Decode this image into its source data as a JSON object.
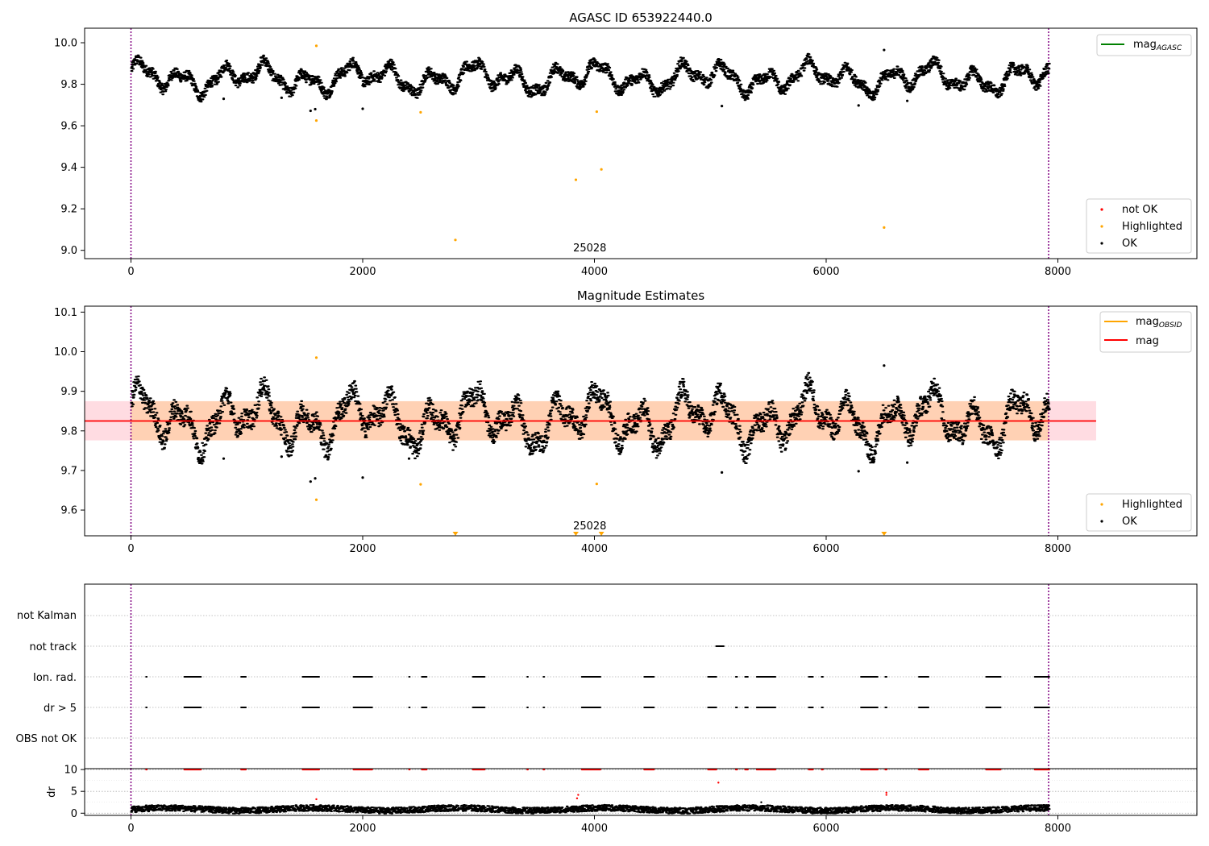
{
  "chart_data": [
    {
      "type": "scatter",
      "title": "AGASC ID 653922440.0",
      "xlim": [
        -400,
        9200
      ],
      "ylim": [
        8.96,
        10.07
      ],
      "x_ticks": [
        0,
        2000,
        4000,
        6000,
        8000
      ],
      "y_ticks": [
        9.0,
        9.2,
        9.4,
        9.6,
        9.8,
        10.0
      ],
      "y_tick_labels": [
        "9.0",
        "9.2",
        "9.4",
        "9.6",
        "9.8",
        "10.0"
      ],
      "obsid_label": {
        "text": "25028",
        "x": 3960
      },
      "obs_bounds": [
        0,
        7920
      ],
      "series": [
        {
          "name": "not OK",
          "color": "#ff0000",
          "points": []
        },
        {
          "name": "Highlighted",
          "color": "#ffa500",
          "points": [
            [
              1600,
              9.985
            ],
            [
              1600,
              9.625
            ],
            [
              2500,
              9.665
            ],
            [
              2800,
              9.05
            ],
            [
              3840,
              9.34
            ],
            [
              4020,
              9.668
            ],
            [
              4060,
              9.39
            ],
            [
              6500,
              9.11
            ]
          ]
        },
        {
          "name": "OK",
          "color": "#000000",
          "note": "dense time series around 9.75-9.95 with outliers",
          "outliers": [
            [
              1550,
              9.672
            ],
            [
              1590,
              9.68
            ],
            [
              2000,
              9.682
            ],
            [
              600,
              9.72
            ],
            [
              800,
              9.73
            ],
            [
              1300,
              9.735
            ],
            [
              5100,
              9.695
            ],
            [
              6280,
              9.698
            ],
            [
              6700,
              9.72
            ],
            [
              6500,
              9.965
            ]
          ]
        }
      ],
      "line_legend": [
        {
          "name": "mag_AGASC",
          "label_main": "mag",
          "label_sub": "AGASC",
          "color": "#008000"
        }
      ],
      "scatter_legend": [
        {
          "name": "not OK",
          "color": "#ff0000"
        },
        {
          "name": "Highlighted",
          "color": "#ffa500"
        },
        {
          "name": "OK",
          "color": "#000000"
        }
      ],
      "obs_line_color": "#800080"
    },
    {
      "type": "scatter",
      "title": "Magnitude Estimates",
      "xlim": [
        -400,
        9200
      ],
      "ylim": [
        9.535,
        10.115
      ],
      "x_ticks": [
        0,
        2000,
        4000,
        6000,
        8000
      ],
      "y_ticks": [
        9.6,
        9.7,
        9.8,
        9.9,
        10.0,
        10.1
      ],
      "y_tick_labels": [
        "9.6",
        "9.7",
        "9.8",
        "9.9",
        "10.0",
        "10.1"
      ],
      "obsid_label": {
        "text": "25028",
        "x": 3960
      },
      "obs_bounds": [
        0,
        7920
      ],
      "mag": 9.825,
      "mag_band": [
        9.776,
        9.875
      ],
      "band_xrange": [
        -400,
        8330
      ],
      "series": [
        {
          "name": "Highlighted",
          "color": "#ffa500",
          "points": [
            [
              1600,
              9.985
            ],
            [
              1600,
              9.626
            ],
            [
              2500,
              9.665
            ],
            [
              4020,
              9.666
            ]
          ],
          "below_axis_x": [
            2800,
            3840,
            4060,
            6500
          ]
        },
        {
          "name": "OK",
          "color": "#000000",
          "outliers": [
            [
              1550,
              9.672
            ],
            [
              1590,
              9.68
            ],
            [
              2000,
              9.682
            ],
            [
              600,
              9.72
            ],
            [
              800,
              9.73
            ],
            [
              1300,
              9.735
            ],
            [
              5100,
              9.695
            ],
            [
              6280,
              9.698
            ],
            [
              6700,
              9.72
            ],
            [
              6500,
              9.965
            ],
            [
              2400,
              9.73
            ],
            [
              6400,
              9.725
            ]
          ]
        }
      ],
      "line_legend": [
        {
          "name": "mag_OBSID",
          "label_main": "mag",
          "label_sub": "OBSID",
          "color": "#ffa500"
        },
        {
          "name": "mag",
          "label_main": "mag",
          "label_sub": "",
          "color": "#ff0000"
        }
      ],
      "scatter_legend": [
        {
          "name": "Highlighted",
          "color": "#ffa500"
        },
        {
          "name": "OK",
          "color": "#000000"
        }
      ],
      "obs_line_color": "#800080"
    },
    {
      "type": "scatter",
      "title": "",
      "xlim": [
        -400,
        9200
      ],
      "categories": [
        "OBS not OK",
        "dr > 5",
        "Ion. rad.",
        "not track",
        "not Kalman"
      ],
      "flag_intervals": {
        "dr > 5": [
          [
            130,
            130
          ],
          [
            460,
            600
          ],
          [
            950,
            990
          ],
          [
            1480,
            1620
          ],
          [
            1920,
            2080
          ],
          [
            2400,
            2400
          ],
          [
            2510,
            2550
          ],
          [
            2950,
            3050
          ],
          [
            3420,
            3420
          ],
          [
            3560,
            3560
          ],
          [
            3890,
            4050
          ],
          [
            4430,
            4510
          ],
          [
            4980,
            5050
          ],
          [
            5220,
            5230
          ],
          [
            5300,
            5320
          ],
          [
            5400,
            5560
          ],
          [
            5850,
            5880
          ],
          [
            5960,
            5970
          ],
          [
            6300,
            6440
          ],
          [
            6510,
            6520
          ],
          [
            6800,
            6880
          ],
          [
            7380,
            7500
          ],
          [
            7800,
            7920
          ]
        ],
        "Ion. rad.": [
          [
            130,
            130
          ],
          [
            460,
            600
          ],
          [
            950,
            990
          ],
          [
            1480,
            1620
          ],
          [
            1920,
            2080
          ],
          [
            2400,
            2400
          ],
          [
            2510,
            2550
          ],
          [
            2950,
            3050
          ],
          [
            3420,
            3420
          ],
          [
            3560,
            3560
          ],
          [
            3890,
            4050
          ],
          [
            4430,
            4510
          ],
          [
            4980,
            5050
          ],
          [
            5220,
            5230
          ],
          [
            5300,
            5320
          ],
          [
            5400,
            5560
          ],
          [
            5850,
            5880
          ],
          [
            5960,
            5970
          ],
          [
            6300,
            6440
          ],
          [
            6510,
            6520
          ],
          [
            6800,
            6880
          ],
          [
            7380,
            7500
          ],
          [
            7800,
            7920
          ]
        ],
        "not track": [
          [
            5050,
            5110
          ]
        ],
        "not Kalman": [],
        "OBS not OK": []
      },
      "obs_bounds": [
        0,
        7920
      ],
      "obs_line_color": "#800080"
    },
    {
      "type": "scatter",
      "title": "",
      "ylabel": "dr",
      "xlim": [
        -400,
        9200
      ],
      "ylim": [
        -0.5,
        10.2
      ],
      "x_ticks": [
        0,
        2000,
        4000,
        6000,
        8000
      ],
      "y_ticks": [
        0,
        5,
        10
      ],
      "y_tick_labels": [
        "0",
        "5",
        "10"
      ],
      "clipped_value": 10,
      "series": [
        {
          "name": "dr",
          "color": "#000000",
          "range": [
            0.3,
            1.9
          ],
          "extra_points": [
            [
              1600,
              3.2
            ],
            [
              3850,
              3.4
            ],
            [
              3860,
              4.2
            ],
            [
              5070,
              7.0
            ],
            [
              6520,
              4.2
            ],
            [
              6520,
              4.7
            ],
            [
              5440,
              2.5
            ]
          ]
        },
        {
          "name": "dr > 5",
          "color": "#ff0000"
        }
      ],
      "obs_bounds": [
        0,
        7920
      ],
      "obs_line_color": "#800080"
    }
  ]
}
